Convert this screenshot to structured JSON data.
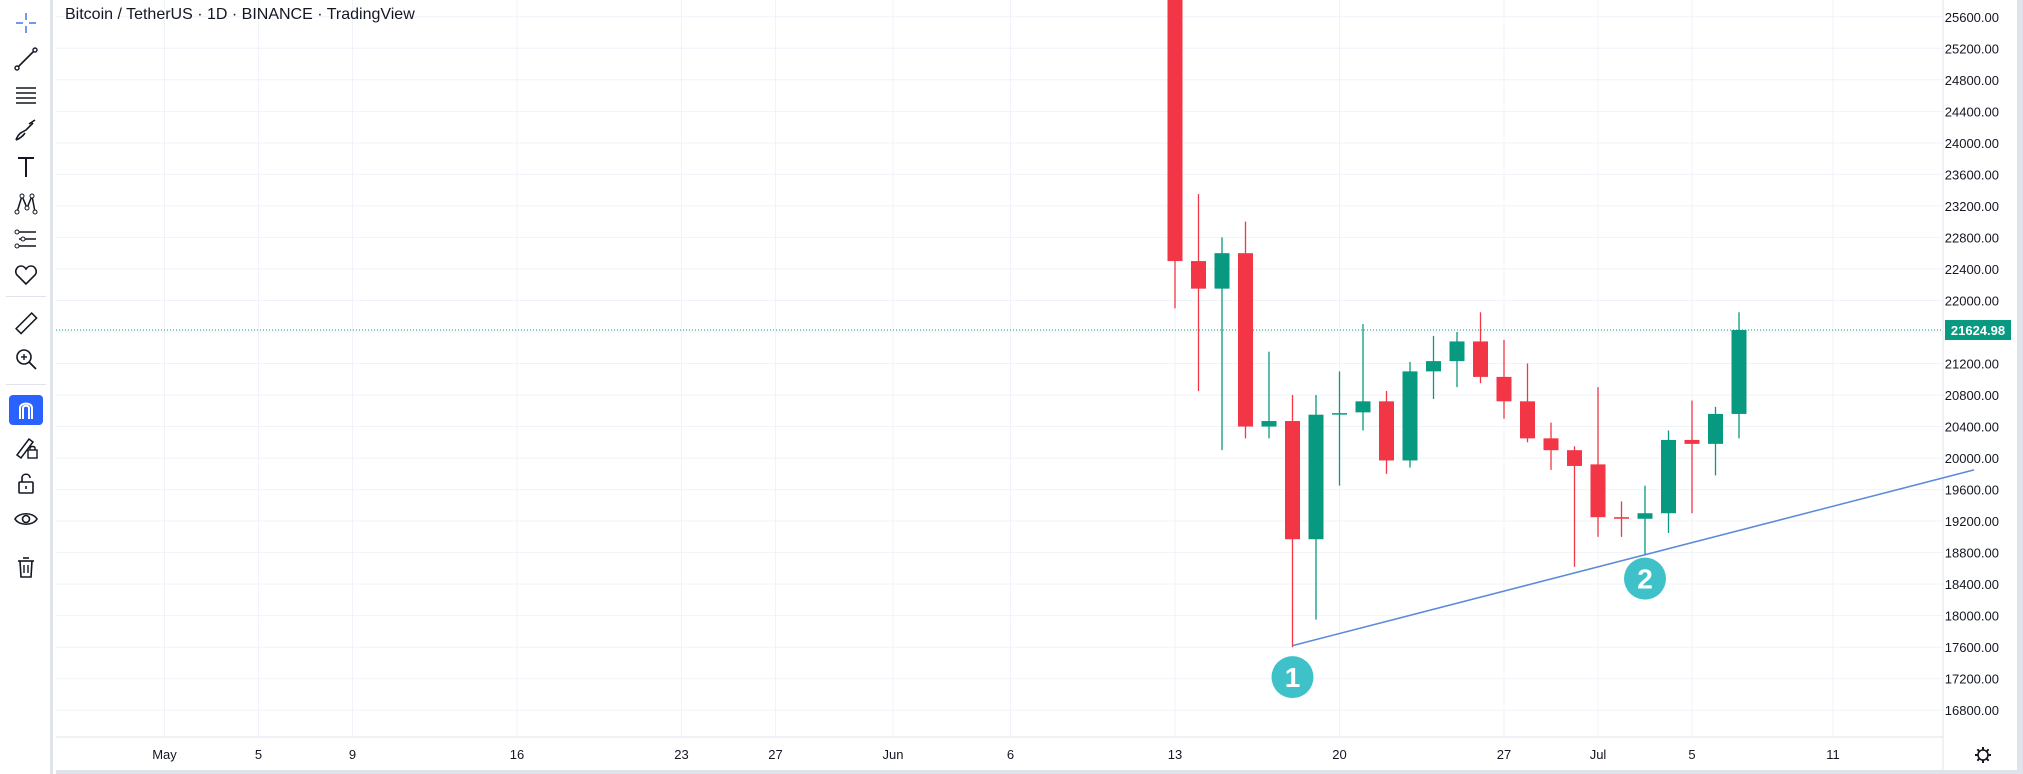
{
  "header": {
    "title": "Bitcoin / TetherUS · 1D · BINANCE · TradingView"
  },
  "toolbar": {
    "tools": [
      {
        "icon": "crosshair-icon",
        "name": "crosshair-tool",
        "active": false
      },
      {
        "icon": "trend-line-icon",
        "name": "trend-line-tool",
        "active": false
      },
      {
        "icon": "fib-retracement-icon",
        "name": "fib-tool",
        "active": false
      },
      {
        "icon": "brush-icon",
        "name": "brush-tool",
        "active": false
      },
      {
        "icon": "text-icon",
        "name": "text-tool",
        "active": false
      },
      {
        "icon": "pattern-icon",
        "name": "pattern-tool",
        "active": false
      },
      {
        "icon": "prediction-icon",
        "name": "prediction-tool",
        "active": false
      },
      {
        "icon": "heart-icon",
        "name": "favorites-tool",
        "active": false
      },
      {
        "icon": "ruler-icon",
        "name": "measure-tool",
        "active": false
      },
      {
        "icon": "zoom-in-icon",
        "name": "zoom-tool",
        "active": false
      },
      {
        "icon": "magnet-icon",
        "name": "magnet-tool",
        "active": true
      },
      {
        "icon": "lock-pencil-icon",
        "name": "lock-drawing-tool",
        "active": false
      },
      {
        "icon": "lock-icon",
        "name": "lock-all-tool",
        "active": false
      },
      {
        "icon": "eye-icon",
        "name": "hide-drawings-tool",
        "active": false
      },
      {
        "icon": "trash-icon",
        "name": "remove-drawings-tool",
        "active": false
      }
    ]
  },
  "colors": {
    "up": "#089981",
    "down": "#f23645",
    "trendline": "#5b8ad8",
    "marker": "#3fc1c9",
    "grid": "#f0f3fa",
    "axis_text": "#131722"
  },
  "settings_icon": "gear-icon",
  "chart_data": {
    "type": "candlestick",
    "symbol": "Bitcoin / TetherUS",
    "interval": "1D",
    "exchange": "BINANCE",
    "ylim": [
      16600,
      25800
    ],
    "y_ticks": [
      "16800.00",
      "17200.00",
      "17600.00",
      "18000.00",
      "18400.00",
      "18800.00",
      "19200.00",
      "19600.00",
      "20000.00",
      "20400.00",
      "20800.00",
      "21200.00",
      "21600.00",
      "22000.00",
      "22400.00",
      "22800.00",
      "23200.00",
      "23600.00",
      "24000.00",
      "24400.00",
      "24800.00",
      "25200.00",
      "25600.00"
    ],
    "x_ticks": [
      {
        "label": "May",
        "date": "2022-05-01"
      },
      {
        "label": "5",
        "date": "2022-05-05"
      },
      {
        "label": "9",
        "date": "2022-05-09"
      },
      {
        "label": "16",
        "date": "2022-05-16"
      },
      {
        "label": "23",
        "date": "2022-05-23"
      },
      {
        "label": "27",
        "date": "2022-05-27"
      },
      {
        "label": "Jun",
        "date": "2022-06-01"
      },
      {
        "label": "6",
        "date": "2022-06-06"
      },
      {
        "label": "13",
        "date": "2022-06-13"
      },
      {
        "label": "20",
        "date": "2022-06-20"
      },
      {
        "label": "27",
        "date": "2022-06-27"
      },
      {
        "label": "Jul",
        "date": "2022-07-01"
      },
      {
        "label": "5",
        "date": "2022-07-05"
      },
      {
        "label": "11",
        "date": "2022-07-11"
      }
    ],
    "candles": [
      {
        "date": "2022-06-13",
        "open": 26600,
        "high": 26900,
        "low": 21900,
        "close": 22500
      },
      {
        "date": "2022-06-14",
        "open": 22500,
        "high": 23350,
        "low": 20850,
        "close": 22150
      },
      {
        "date": "2022-06-15",
        "open": 22150,
        "high": 22800,
        "low": 20100,
        "close": 22600
      },
      {
        "date": "2022-06-16",
        "open": 22600,
        "high": 23000,
        "low": 20250,
        "close": 20400
      },
      {
        "date": "2022-06-17",
        "open": 20400,
        "high": 21350,
        "low": 20250,
        "close": 20470
      },
      {
        "date": "2022-06-18",
        "open": 20470,
        "high": 20800,
        "low": 17600,
        "close": 18970
      },
      {
        "date": "2022-06-19",
        "open": 18970,
        "high": 20800,
        "low": 17950,
        "close": 20550
      },
      {
        "date": "2022-06-20",
        "open": 20570,
        "high": 21100,
        "low": 19650,
        "close": 20570
      },
      {
        "date": "2022-06-21",
        "open": 20580,
        "high": 21700,
        "low": 20350,
        "close": 20720
      },
      {
        "date": "2022-06-22",
        "open": 20720,
        "high": 20850,
        "low": 19800,
        "close": 19970
      },
      {
        "date": "2022-06-23",
        "open": 19970,
        "high": 21220,
        "low": 19880,
        "close": 21100
      },
      {
        "date": "2022-06-24",
        "open": 21100,
        "high": 21550,
        "low": 20750,
        "close": 21230
      },
      {
        "date": "2022-06-25",
        "open": 21230,
        "high": 21600,
        "low": 20900,
        "close": 21480
      },
      {
        "date": "2022-06-26",
        "open": 21480,
        "high": 21850,
        "low": 20950,
        "close": 21030
      },
      {
        "date": "2022-06-27",
        "open": 21030,
        "high": 21500,
        "low": 20500,
        "close": 20720
      },
      {
        "date": "2022-06-28",
        "open": 20720,
        "high": 21200,
        "low": 20200,
        "close": 20250
      },
      {
        "date": "2022-06-29",
        "open": 20250,
        "high": 20450,
        "low": 19850,
        "close": 20100
      },
      {
        "date": "2022-06-30",
        "open": 20100,
        "high": 20150,
        "low": 18620,
        "close": 19900
      },
      {
        "date": "2022-07-01",
        "open": 19920,
        "high": 20900,
        "low": 19000,
        "close": 19250
      },
      {
        "date": "2022-07-02",
        "open": 19250,
        "high": 19450,
        "low": 19000,
        "close": 19230
      },
      {
        "date": "2022-07-03",
        "open": 19230,
        "high": 19650,
        "low": 18780,
        "close": 19300
      },
      {
        "date": "2022-07-04",
        "open": 19300,
        "high": 20350,
        "low": 19050,
        "close": 20230
      },
      {
        "date": "2022-07-05",
        "open": 20230,
        "high": 20730,
        "low": 19300,
        "close": 20180
      },
      {
        "date": "2022-07-06",
        "open": 20180,
        "high": 20650,
        "low": 19780,
        "close": 20560
      },
      {
        "date": "2022-07-07",
        "open": 20560,
        "high": 21850,
        "low": 20250,
        "close": 21624.98
      }
    ],
    "last_price": "21624.98",
    "trendline": {
      "start": {
        "date": "2022-06-18",
        "price": 17620
      },
      "end": {
        "date": "2022-07-17",
        "price": 19850
      }
    },
    "markers": [
      {
        "label": "1",
        "date": "2022-06-18",
        "price": 17220
      },
      {
        "label": "2",
        "date": "2022-07-03",
        "price": 18470
      }
    ]
  }
}
